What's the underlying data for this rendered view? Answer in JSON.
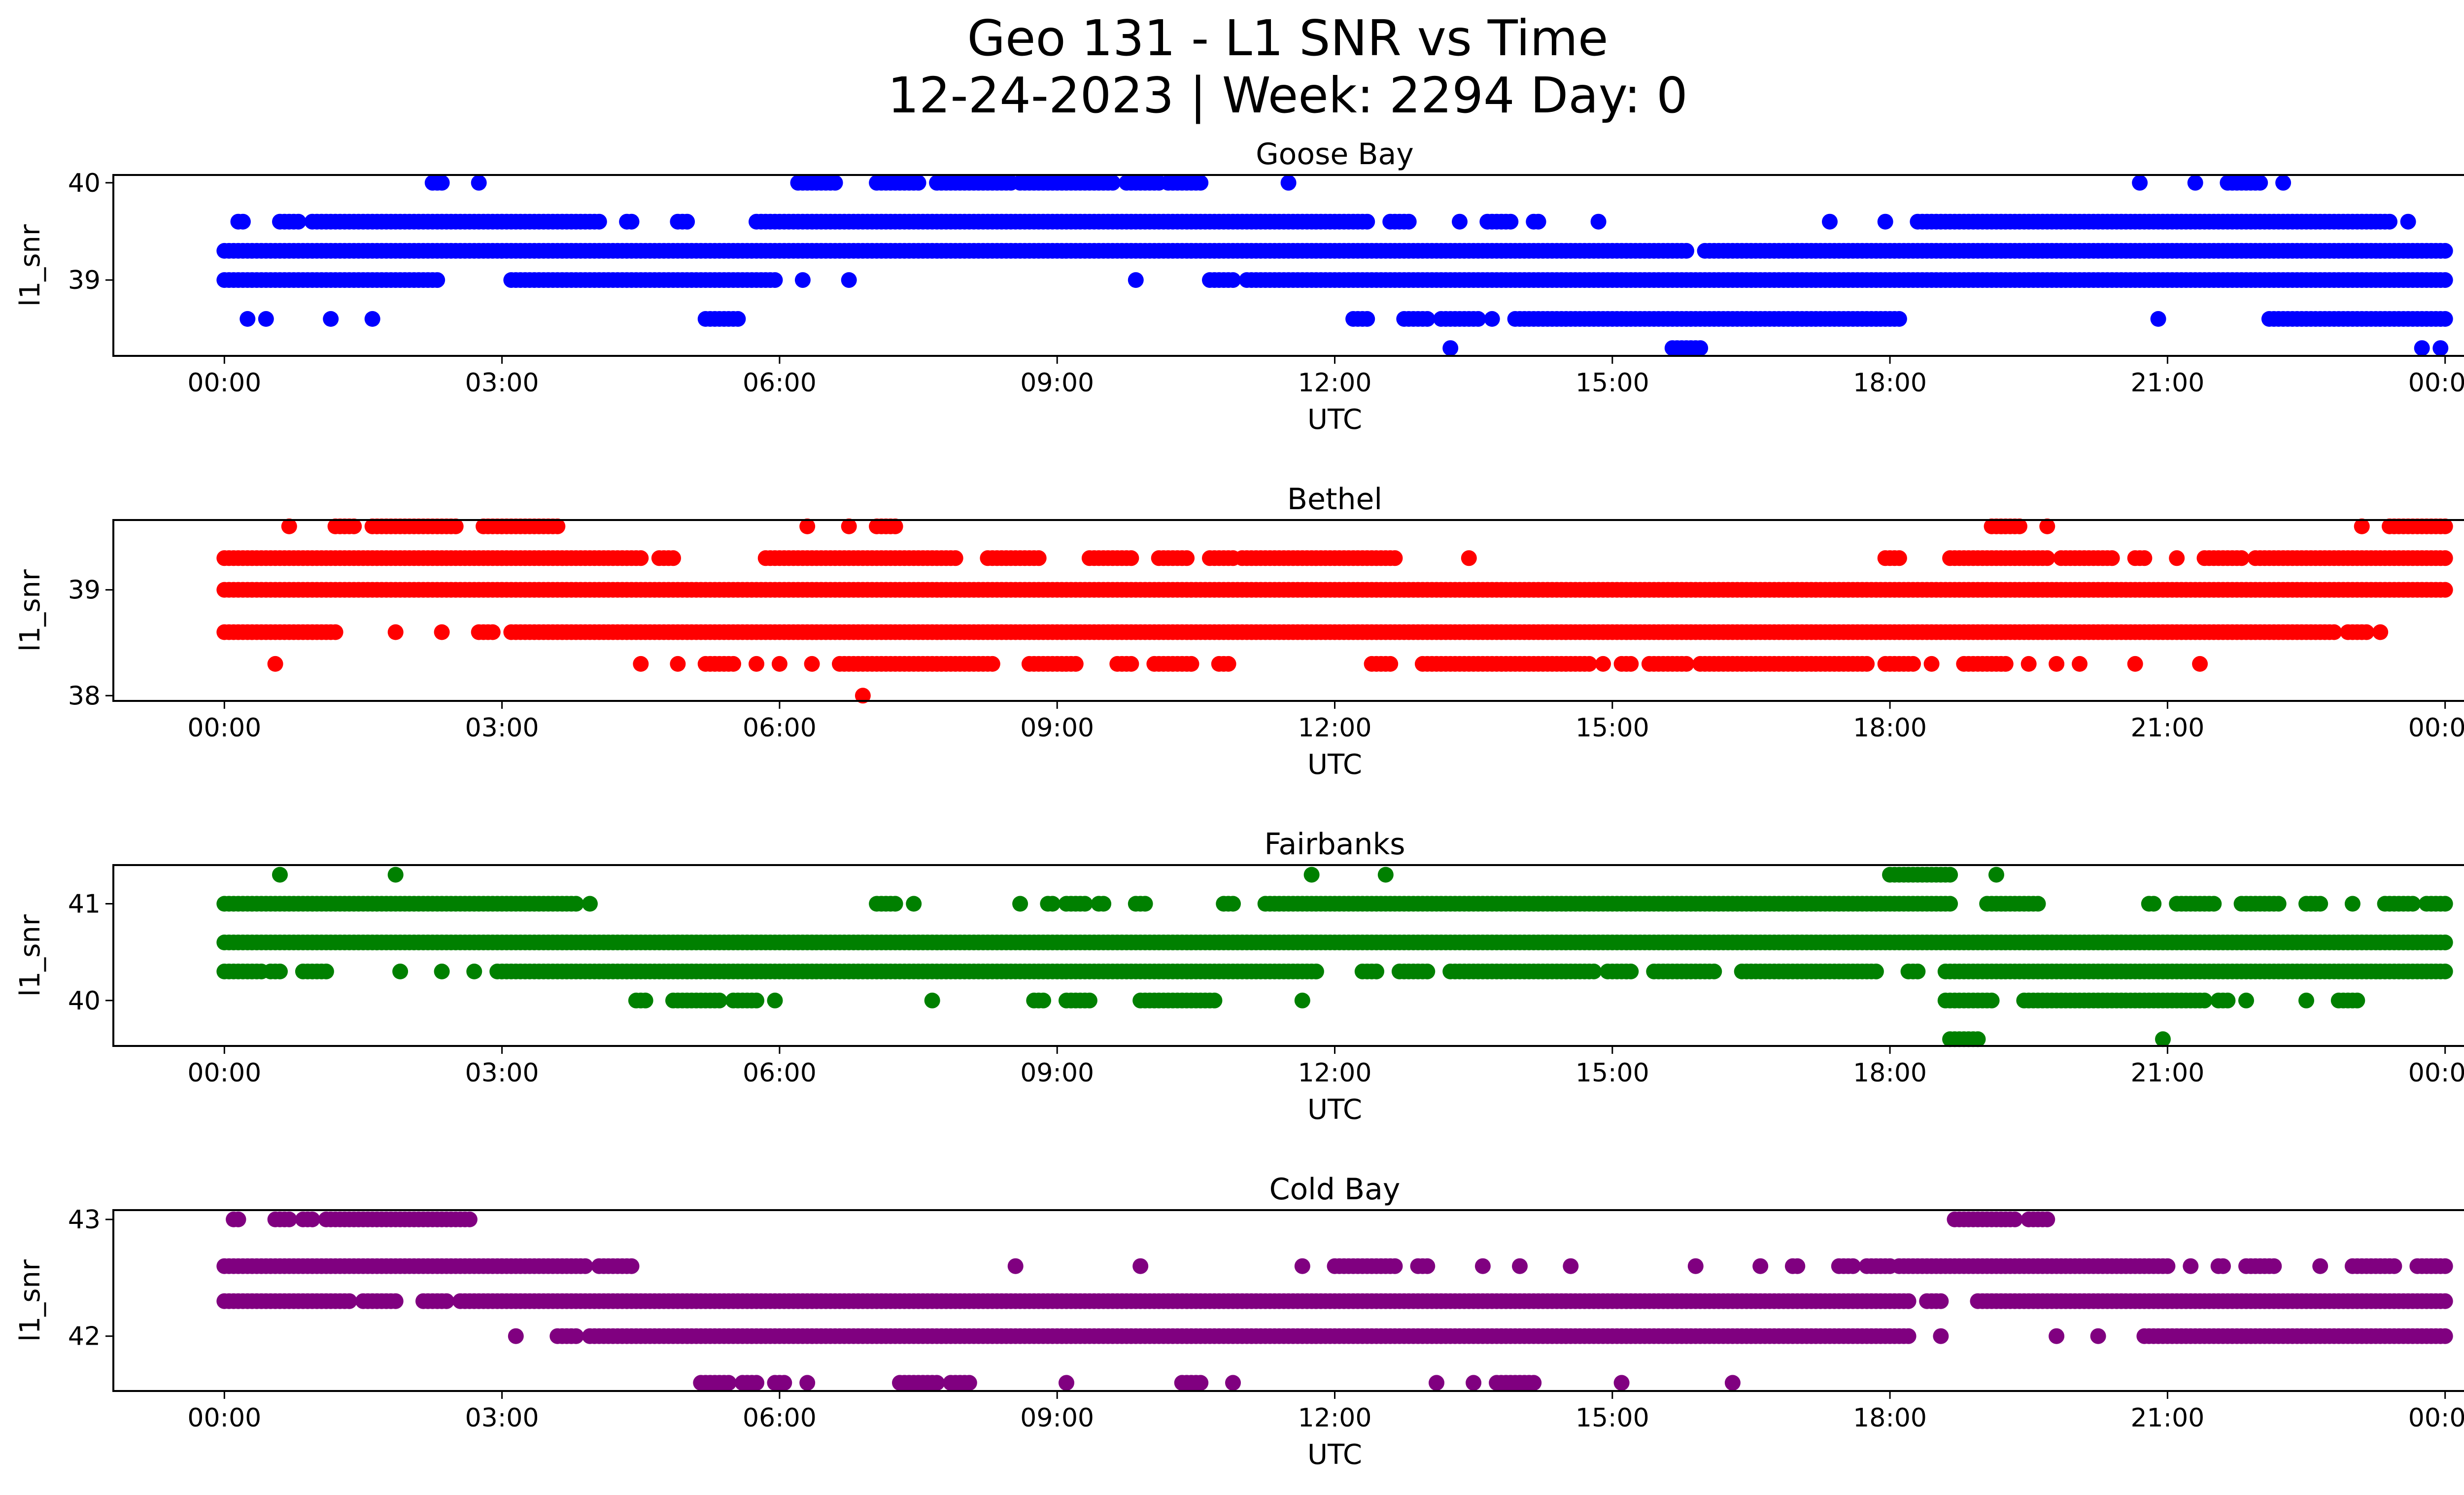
{
  "figure": {
    "title_line1": "Geo 131 - L1 SNR vs Time",
    "title_line2": "12-24-2023 | Week: 2294 Day: 0"
  },
  "chart_data": [
    {
      "type": "scatter",
      "title": "Goose Bay",
      "xlabel": "UTC",
      "ylabel": "l1_snr",
      "color": "#0000ff",
      "xlim_hours": [
        -1.2,
        25.2
      ],
      "ylim": [
        38.22,
        40.08
      ],
      "x_ticks": [
        "00:00",
        "03:00",
        "06:00",
        "09:00",
        "12:00",
        "15:00",
        "18:00",
        "21:00",
        "00:00"
      ],
      "y_ticks": [
        39,
        40
      ],
      "series": [
        {
          "y": 40.0,
          "segments": [
            [
              2.25,
              2.35
            ],
            [
              2.75,
              2.75
            ],
            [
              6.2,
              6.6
            ],
            [
              7.05,
              7.5
            ],
            [
              7.7,
              8.5
            ],
            [
              8.6,
              9.6
            ],
            [
              9.75,
              10.1
            ],
            [
              10.2,
              10.55
            ],
            [
              11.5,
              11.5
            ],
            [
              20.7,
              20.7
            ],
            [
              21.3,
              21.3
            ],
            [
              21.65,
              22.0
            ],
            [
              22.25,
              22.25
            ]
          ]
        },
        {
          "y": 39.6,
          "segments": [
            [
              0.15,
              0.2
            ],
            [
              0.6,
              0.8
            ],
            [
              0.95,
              4.05
            ],
            [
              4.35,
              4.4
            ],
            [
              4.9,
              5.0
            ],
            [
              5.75,
              12.35
            ],
            [
              12.6,
              12.8
            ],
            [
              13.35,
              13.35
            ],
            [
              13.65,
              13.9
            ],
            [
              14.15,
              14.2
            ],
            [
              14.85,
              14.85
            ],
            [
              17.35,
              17.35
            ],
            [
              17.95,
              17.95
            ],
            [
              18.3,
              23.4
            ],
            [
              23.6,
              23.6
            ]
          ]
        },
        {
          "y": 39.3,
          "segments": [
            [
              0.0,
              15.8
            ],
            [
              16.0,
              24.0
            ]
          ]
        },
        {
          "y": 39.0,
          "segments": [
            [
              0.0,
              2.3
            ],
            [
              3.1,
              5.95
            ],
            [
              6.25,
              6.25
            ],
            [
              6.75,
              6.75
            ],
            [
              9.85,
              9.85
            ],
            [
              10.65,
              10.9
            ],
            [
              11.05,
              24.0
            ]
          ]
        },
        {
          "y": 38.6,
          "segments": [
            [
              0.25,
              0.25
            ],
            [
              0.45,
              0.45
            ],
            [
              1.15,
              1.15
            ],
            [
              1.6,
              1.6
            ],
            [
              5.2,
              5.55
            ],
            [
              12.2,
              12.35
            ],
            [
              12.75,
              13.0
            ],
            [
              13.15,
              13.55
            ],
            [
              13.7,
              13.7
            ],
            [
              13.95,
              18.1
            ],
            [
              20.9,
              20.9
            ],
            [
              22.1,
              24.0
            ]
          ]
        },
        {
          "y": 38.3,
          "segments": [
            [
              13.25,
              13.25
            ],
            [
              15.65,
              15.95
            ],
            [
              23.75,
              23.75
            ],
            [
              23.95,
              23.95
            ]
          ]
        }
      ]
    },
    {
      "type": "scatter",
      "title": "Bethel",
      "xlabel": "UTC",
      "ylabel": "l1_snr",
      "color": "#ff0000",
      "xlim_hours": [
        -1.2,
        25.2
      ],
      "ylim": [
        37.95,
        39.66
      ],
      "x_ticks": [
        "00:00",
        "03:00",
        "06:00",
        "09:00",
        "12:00",
        "15:00",
        "18:00",
        "21:00",
        "00:00"
      ],
      "y_ticks": [
        38,
        39
      ],
      "series": [
        {
          "y": 39.6,
          "segments": [
            [
              0.7,
              0.7
            ],
            [
              1.2,
              1.4
            ],
            [
              1.6,
              2.5
            ],
            [
              2.8,
              3.6
            ],
            [
              6.3,
              6.3
            ],
            [
              6.75,
              6.75
            ],
            [
              7.05,
              7.25
            ],
            [
              19.1,
              19.4
            ],
            [
              19.7,
              19.7
            ],
            [
              23.1,
              23.1
            ],
            [
              23.4,
              24.0
            ]
          ]
        },
        {
          "y": 39.3,
          "segments": [
            [
              0.0,
              4.5
            ],
            [
              4.7,
              4.85
            ],
            [
              5.85,
              7.9
            ],
            [
              8.25,
              8.8
            ],
            [
              9.35,
              9.8
            ],
            [
              10.1,
              10.4
            ],
            [
              10.65,
              10.9
            ],
            [
              11.0,
              12.65
            ],
            [
              13.45,
              13.45
            ],
            [
              17.95,
              18.1
            ],
            [
              18.65,
              19.7
            ],
            [
              19.85,
              20.4
            ],
            [
              20.65,
              20.75
            ],
            [
              21.1,
              21.1
            ],
            [
              21.4,
              21.8
            ],
            [
              21.95,
              24.0
            ]
          ]
        },
        {
          "y": 39.0,
          "segments": [
            [
              0.0,
              24.0
            ]
          ]
        },
        {
          "y": 38.6,
          "segments": [
            [
              0.0,
              1.2
            ],
            [
              1.85,
              1.85
            ],
            [
              2.35,
              2.35
            ],
            [
              2.75,
              2.9
            ],
            [
              3.1,
              22.8
            ],
            [
              22.95,
              23.15
            ],
            [
              23.3,
              23.3
            ]
          ]
        },
        {
          "y": 38.3,
          "segments": [
            [
              0.55,
              0.55
            ],
            [
              4.5,
              4.5
            ],
            [
              4.9,
              4.9
            ],
            [
              5.2,
              5.5
            ],
            [
              5.75,
              5.75
            ],
            [
              6.0,
              6.0
            ],
            [
              6.35,
              6.35
            ],
            [
              6.65,
              8.3
            ],
            [
              8.7,
              9.2
            ],
            [
              9.65,
              9.8
            ],
            [
              10.05,
              10.45
            ],
            [
              10.75,
              10.85
            ],
            [
              12.4,
              12.6
            ],
            [
              12.95,
              14.75
            ],
            [
              14.9,
              14.9
            ],
            [
              15.1,
              15.2
            ],
            [
              15.4,
              15.8
            ],
            [
              15.95,
              17.0
            ],
            [
              17.05,
              17.75
            ],
            [
              17.95,
              18.25
            ],
            [
              18.45,
              18.45
            ],
            [
              18.8,
              19.25
            ],
            [
              19.5,
              19.5
            ],
            [
              19.8,
              19.8
            ],
            [
              20.05,
              20.05
            ],
            [
              20.65,
              20.65
            ],
            [
              21.35,
              21.35
            ]
          ]
        },
        {
          "y": 38.0,
          "segments": [
            [
              6.9,
              6.9
            ]
          ]
        }
      ]
    },
    {
      "type": "scatter",
      "title": "Fairbanks",
      "xlabel": "UTC",
      "ylabel": "l1_snr",
      "color": "#008000",
      "xlim_hours": [
        -1.2,
        25.2
      ],
      "ylim": [
        39.53,
        41.4
      ],
      "x_ticks": [
        "00:00",
        "03:00",
        "06:00",
        "09:00",
        "12:00",
        "15:00",
        "18:00",
        "21:00",
        "00:00"
      ],
      "y_ticks": [
        40,
        41
      ],
      "series": [
        {
          "y": 41.3,
          "segments": [
            [
              0.6,
              0.6
            ],
            [
              1.85,
              1.85
            ],
            [
              11.75,
              11.75
            ],
            [
              12.55,
              12.55
            ],
            [
              18.0,
              18.65
            ],
            [
              19.15,
              19.15
            ]
          ]
        },
        {
          "y": 41.0,
          "segments": [
            [
              0.0,
              3.8
            ],
            [
              3.95,
              3.95
            ],
            [
              7.05,
              7.25
            ],
            [
              7.45,
              7.45
            ],
            [
              8.6,
              8.6
            ],
            [
              8.9,
              8.95
            ],
            [
              9.1,
              9.3
            ],
            [
              9.45,
              9.5
            ],
            [
              9.85,
              9.95
            ],
            [
              10.8,
              10.8
            ],
            [
              10.85,
              10.9
            ],
            [
              11.25,
              18.65
            ],
            [
              19.05,
              19.6
            ],
            [
              20.8,
              20.85
            ],
            [
              21.1,
              21.5
            ],
            [
              21.8,
              22.2
            ],
            [
              22.5,
              22.65
            ],
            [
              23.0,
              23.0
            ],
            [
              23.35,
              23.65
            ],
            [
              23.8,
              24.0
            ]
          ]
        },
        {
          "y": 40.6,
          "segments": [
            [
              0.0,
              24.0
            ]
          ]
        },
        {
          "y": 40.3,
          "segments": [
            [
              0.0,
              0.4
            ],
            [
              0.5,
              0.6
            ],
            [
              0.85,
              1.1
            ],
            [
              1.9,
              1.9
            ],
            [
              2.35,
              2.35
            ],
            [
              2.7,
              2.7
            ],
            [
              2.95,
              11.8
            ],
            [
              12.3,
              12.45
            ],
            [
              12.7,
              13.0
            ],
            [
              13.25,
              14.8
            ],
            [
              14.95,
              15.2
            ],
            [
              15.45,
              16.1
            ],
            [
              16.4,
              17.85
            ],
            [
              18.2,
              18.3
            ],
            [
              18.6,
              24.0
            ]
          ]
        },
        {
          "y": 40.0,
          "segments": [
            [
              4.45,
              4.55
            ],
            [
              4.85,
              5.35
            ],
            [
              5.5,
              5.75
            ],
            [
              5.95,
              5.95
            ],
            [
              7.65,
              7.65
            ],
            [
              8.75,
              8.85
            ],
            [
              9.1,
              9.35
            ],
            [
              9.9,
              10.7
            ],
            [
              11.65,
              11.65
            ],
            [
              18.6,
              19.1
            ],
            [
              19.45,
              21.4
            ],
            [
              21.55,
              21.65
            ],
            [
              21.85,
              21.85
            ],
            [
              22.5,
              22.5
            ],
            [
              22.85,
              23.05
            ]
          ]
        },
        {
          "y": 39.6,
          "segments": [
            [
              18.65,
              18.95
            ],
            [
              20.95,
              20.95
            ]
          ]
        }
      ]
    },
    {
      "type": "scatter",
      "title": "Cold Bay",
      "xlabel": "UTC",
      "ylabel": "l1_snr",
      "color": "#800080",
      "xlim_hours": [
        -1.2,
        25.2
      ],
      "ylim": [
        41.53,
        43.08
      ],
      "x_ticks": [
        "00:00",
        "03:00",
        "06:00",
        "09:00",
        "12:00",
        "15:00",
        "18:00",
        "21:00",
        "00:00"
      ],
      "y_ticks": [
        42,
        43
      ],
      "series": [
        {
          "y": 43.0,
          "segments": [
            [
              0.1,
              0.15
            ],
            [
              0.55,
              0.7
            ],
            [
              0.85,
              0.95
            ],
            [
              1.1,
              2.65
            ],
            [
              18.7,
              19.35
            ],
            [
              19.5,
              19.7
            ]
          ]
        },
        {
          "y": 42.6,
          "segments": [
            [
              0.0,
              3.9
            ],
            [
              4.05,
              4.4
            ],
            [
              8.55,
              8.55
            ],
            [
              9.9,
              9.9
            ],
            [
              11.65,
              11.65
            ],
            [
              12.0,
              12.65
            ],
            [
              12.9,
              13.0
            ],
            [
              13.6,
              13.6
            ],
            [
              14.0,
              14.0
            ],
            [
              14.55,
              14.55
            ],
            [
              15.9,
              15.9
            ],
            [
              16.6,
              16.6
            ],
            [
              16.95,
              17.0
            ],
            [
              17.45,
              17.6
            ],
            [
              17.75,
              18.0
            ],
            [
              18.1,
              21.0
            ],
            [
              21.25,
              21.25
            ],
            [
              21.55,
              21.6
            ],
            [
              21.85,
              22.15
            ],
            [
              22.65,
              22.65
            ],
            [
              23.0,
              23.45
            ],
            [
              23.7,
              24.0
            ]
          ]
        },
        {
          "y": 42.3,
          "segments": [
            [
              0.0,
              1.35
            ],
            [
              1.5,
              1.85
            ],
            [
              2.15,
              2.4
            ],
            [
              2.55,
              18.2
            ],
            [
              18.4,
              18.55
            ],
            [
              18.95,
              24.0
            ]
          ]
        },
        {
          "y": 42.0,
          "segments": [
            [
              3.15,
              3.15
            ],
            [
              3.6,
              3.8
            ],
            [
              3.95,
              18.2
            ],
            [
              18.55,
              18.55
            ],
            [
              19.8,
              19.8
            ],
            [
              20.25,
              20.25
            ],
            [
              20.75,
              24.0
            ]
          ]
        },
        {
          "y": 41.6,
          "segments": [
            [
              5.15,
              5.45
            ],
            [
              5.6,
              5.75
            ],
            [
              5.95,
              6.05
            ],
            [
              6.3,
              6.3
            ],
            [
              7.3,
              7.7
            ],
            [
              7.85,
              8.05
            ],
            [
              9.1,
              9.1
            ],
            [
              10.35,
              10.55
            ],
            [
              10.9,
              10.9
            ],
            [
              13.1,
              13.1
            ],
            [
              13.5,
              13.5
            ],
            [
              13.75,
              14.15
            ],
            [
              15.1,
              15.1
            ],
            [
              16.3,
              16.3
            ]
          ]
        }
      ]
    }
  ]
}
